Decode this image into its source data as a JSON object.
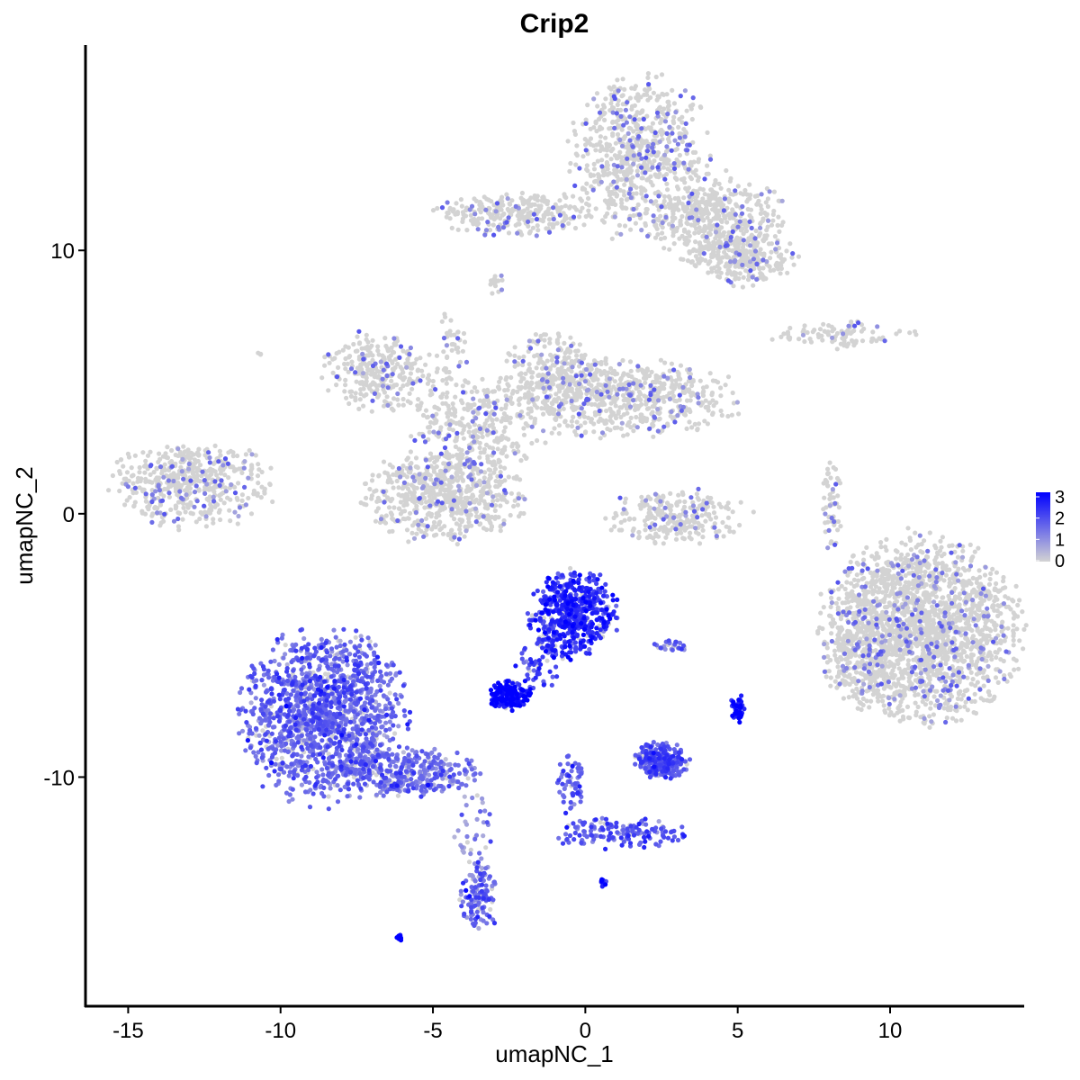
{
  "chart_data": {
    "type": "scatter",
    "title": "Crip2",
    "xlabel": "umapNC_1",
    "ylabel": "umapNC_2",
    "xlim": [
      -16.4,
      14.4
    ],
    "ylim": [
      -18.7,
      17.8
    ],
    "xticks": [
      -15,
      -10,
      -5,
      0,
      5,
      10
    ],
    "xtick_labels": [
      "-15",
      "-10",
      "-5",
      "0",
      "5",
      "10"
    ],
    "yticks": [
      -10,
      0,
      10
    ],
    "ytick_labels": [
      "-10",
      "0",
      "10"
    ],
    "grid": false,
    "legend": {
      "position": "right",
      "type": "colorbar",
      "ticks": [
        0,
        1,
        2,
        3
      ],
      "tick_labels": [
        "0",
        "1",
        "2",
        "3"
      ],
      "range": [
        0,
        3
      ],
      "color_low": "#D3D3D3",
      "color_high": "#0000FF"
    },
    "clusters": [
      {
        "x": 1.8,
        "y": 13.7,
        "sx": 1.1,
        "sy": 1.5,
        "n": 700,
        "expr": 0.3
      },
      {
        "x": 4.3,
        "y": 11.2,
        "sx": 1.1,
        "sy": 0.8,
        "n": 450,
        "expr": 0.35
      },
      {
        "x": 5.2,
        "y": 9.7,
        "sx": 0.8,
        "sy": 0.5,
        "n": 250,
        "expr": 0.3
      },
      {
        "x": -2.2,
        "y": 11.4,
        "sx": 1.3,
        "sy": 0.4,
        "n": 300,
        "expr": 0.2
      },
      {
        "x": -2.9,
        "y": 8.7,
        "sx": 0.15,
        "sy": 0.2,
        "n": 15,
        "expr": 0.1
      },
      {
        "x": 8.3,
        "y": 6.8,
        "sx": 1.2,
        "sy": 0.25,
        "n": 90,
        "expr": 0.4
      },
      {
        "x": -6.8,
        "y": 5.4,
        "sx": 0.9,
        "sy": 0.7,
        "n": 300,
        "expr": 0.5
      },
      {
        "x": 1.0,
        "y": 4.4,
        "sx": 2.0,
        "sy": 0.7,
        "n": 700,
        "expr": 0.3
      },
      {
        "x": -1.1,
        "y": 5.5,
        "sx": 0.7,
        "sy": 0.7,
        "n": 200,
        "expr": 0.35
      },
      {
        "x": -3.6,
        "y": 3.3,
        "sx": 1.1,
        "sy": 0.9,
        "n": 300,
        "expr": 0.3
      },
      {
        "x": -4.6,
        "y": 0.7,
        "sx": 1.3,
        "sy": 0.9,
        "n": 650,
        "expr": 0.3
      },
      {
        "x": -4.4,
        "y": 6.4,
        "sx": 0.3,
        "sy": 0.7,
        "n": 40,
        "expr": 0.6
      },
      {
        "x": -12.9,
        "y": 1.1,
        "sx": 1.3,
        "sy": 0.8,
        "n": 500,
        "expr": 0.35
      },
      {
        "x": 3.0,
        "y": -0.1,
        "sx": 1.2,
        "sy": 0.5,
        "n": 250,
        "expr": 0.2
      },
      {
        "x": 8.1,
        "y": 0.3,
        "sx": 0.15,
        "sy": 0.9,
        "n": 60,
        "expr": 0.1
      },
      {
        "x": 11.0,
        "y": -4.4,
        "sx": 1.6,
        "sy": 1.7,
        "n": 2000,
        "expr": 0.25
      },
      {
        "x": 8.9,
        "y": -5.3,
        "sx": 0.5,
        "sy": 1.0,
        "n": 150,
        "expr": 0.4
      },
      {
        "x": -8.6,
        "y": -7.7,
        "sx": 1.3,
        "sy": 1.6,
        "n": 1400,
        "expr": 1.5
      },
      {
        "x": -5.9,
        "y": -9.8,
        "sx": 1.2,
        "sy": 0.45,
        "n": 350,
        "expr": 1.4
      },
      {
        "x": -0.4,
        "y": -3.8,
        "sx": 0.7,
        "sy": 0.8,
        "n": 550,
        "expr": 2.3
      },
      {
        "x": -1.5,
        "y": -5.6,
        "sx": 0.4,
        "sy": 0.6,
        "n": 60,
        "expr": 2.0
      },
      {
        "x": -2.5,
        "y": -6.9,
        "sx": 0.35,
        "sy": 0.25,
        "n": 200,
        "expr": 2.8
      },
      {
        "x": 2.5,
        "y": -9.4,
        "sx": 0.45,
        "sy": 0.35,
        "n": 250,
        "expr": 1.8
      },
      {
        "x": 5.0,
        "y": -7.4,
        "sx": 0.12,
        "sy": 0.25,
        "n": 50,
        "expr": 2.8
      },
      {
        "x": 2.8,
        "y": -5.0,
        "sx": 0.3,
        "sy": 0.1,
        "n": 25,
        "expr": 1.5
      },
      {
        "x": -0.5,
        "y": -10.3,
        "sx": 0.2,
        "sy": 0.6,
        "n": 60,
        "expr": 1.6
      },
      {
        "x": 1.2,
        "y": -12.2,
        "sx": 1.1,
        "sy": 0.3,
        "n": 150,
        "expr": 1.7
      },
      {
        "x": -3.7,
        "y": -12.3,
        "sx": 0.3,
        "sy": 0.9,
        "n": 40,
        "expr": 1.0
      },
      {
        "x": -3.5,
        "y": -14.6,
        "sx": 0.3,
        "sy": 0.7,
        "n": 120,
        "expr": 1.6
      },
      {
        "x": 0.6,
        "y": -14.0,
        "sx": 0.08,
        "sy": 0.1,
        "n": 12,
        "expr": 2.4
      },
      {
        "x": -6.1,
        "y": -16.1,
        "sx": 0.1,
        "sy": 0.06,
        "n": 12,
        "expr": 3.0
      },
      {
        "x": -10.7,
        "y": 6.1,
        "sx": 0.05,
        "sy": 0.05,
        "n": 3,
        "expr": 0.0
      }
    ]
  }
}
